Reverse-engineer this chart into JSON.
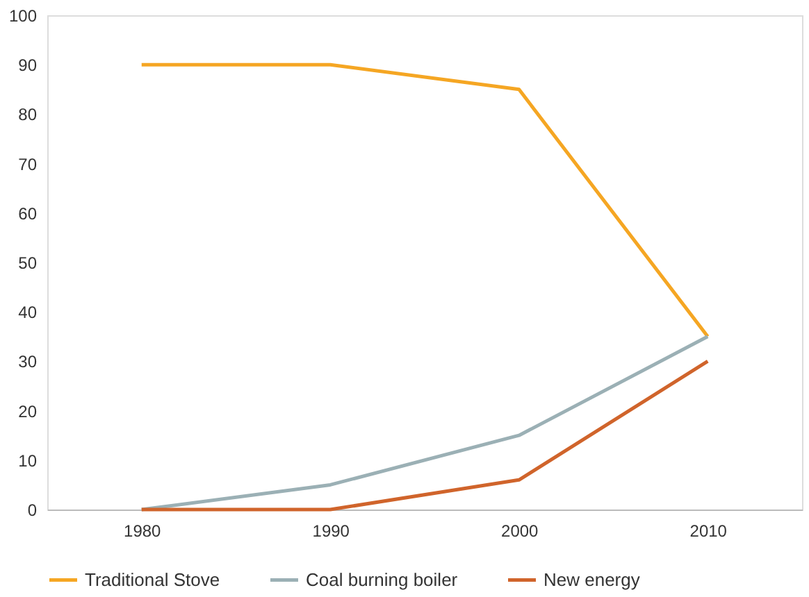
{
  "chart_data": {
    "type": "line",
    "categories": [
      "1980",
      "1990",
      "2000",
      "2010"
    ],
    "series": [
      {
        "name": "Traditional Stove",
        "color": "#f5a623",
        "values": [
          90,
          90,
          85,
          35
        ]
      },
      {
        "name": "Coal burning boiler",
        "color": "#9bb0b5",
        "values": [
          0,
          5,
          15,
          35
        ]
      },
      {
        "name": "New energy",
        "color": "#d0642b",
        "values": [
          0,
          0,
          6,
          30
        ]
      }
    ],
    "ylim": [
      0,
      100
    ],
    "yticks": [
      0,
      10,
      20,
      30,
      40,
      50,
      60,
      70,
      80,
      90,
      100
    ],
    "grid": false,
    "legend": "bottom",
    "marker": "none",
    "line_style": "solid"
  }
}
